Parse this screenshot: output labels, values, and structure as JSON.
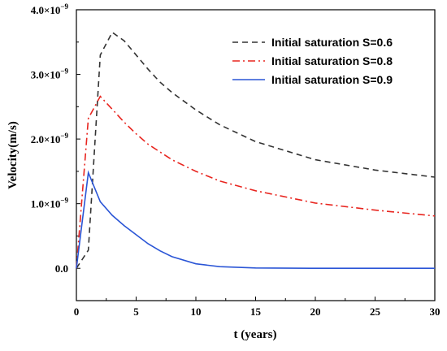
{
  "chart_data": {
    "type": "line",
    "xlabel": "t (years)",
    "ylabel": "Velocity(m/s)",
    "xlim": [
      0,
      30
    ],
    "ylim": [
      -5e-10,
      4e-09
    ],
    "grid": false,
    "legend_position": "top-right",
    "x_ticks": [
      0,
      5,
      10,
      15,
      20,
      25,
      30
    ],
    "x_tick_labels": [
      "0",
      "5",
      "10",
      "15",
      "20",
      "25",
      "30"
    ],
    "y_ticks": [
      {
        "value": 0.0,
        "mantissa": "0.0",
        "suffix": ""
      },
      {
        "value": 1e-09,
        "mantissa": "1.0×10",
        "suffix": "−9"
      },
      {
        "value": 2e-09,
        "mantissa": "2.0×10",
        "suffix": "−9"
      },
      {
        "value": 3e-09,
        "mantissa": "3.0×10",
        "suffix": "−9"
      },
      {
        "value": 4e-09,
        "mantissa": "4.0×10",
        "suffix": "−9"
      }
    ],
    "series": [
      {
        "name": "Initial saturation S=0.6",
        "color": "#333333",
        "dash": "dash",
        "x": [
          0,
          1,
          2,
          3,
          4,
          5,
          6,
          7,
          8,
          10,
          12,
          15,
          20,
          25,
          30
        ],
        "y": [
          0,
          2.8e-10,
          3.3e-09,
          3.65e-09,
          3.52e-09,
          3.3e-09,
          3.08e-09,
          2.88e-09,
          2.72e-09,
          2.45e-09,
          2.22e-09,
          1.96e-09,
          1.68e-09,
          1.52e-09,
          1.41e-09
        ]
      },
      {
        "name": "Initial saturation S=0.8",
        "color": "#e8251f",
        "dash": "dashdot",
        "x": [
          0,
          1,
          2,
          3,
          4,
          5,
          6,
          8,
          10,
          12,
          15,
          20,
          25,
          30
        ],
        "y": [
          0,
          2.32e-09,
          2.66e-09,
          2.46e-09,
          2.26e-09,
          2.08e-09,
          1.92e-09,
          1.68e-09,
          1.5e-09,
          1.35e-09,
          1.2e-09,
          1.01e-09,
          9e-10,
          8.1e-10
        ]
      },
      {
        "name": "Initial saturation S=0.9",
        "color": "#2a55d6",
        "dash": "solid",
        "x": [
          0,
          1,
          2,
          3,
          4,
          5,
          6,
          7,
          8,
          10,
          12,
          15,
          20,
          25,
          30
        ],
        "y": [
          0,
          1.48e-09,
          1.03e-09,
          8.2e-10,
          6.6e-10,
          5.2e-10,
          3.8e-10,
          2.7e-10,
          1.8e-10,
          7e-11,
          2.5e-11,
          5e-12,
          0.0,
          0.0,
          0.0
        ]
      }
    ]
  }
}
